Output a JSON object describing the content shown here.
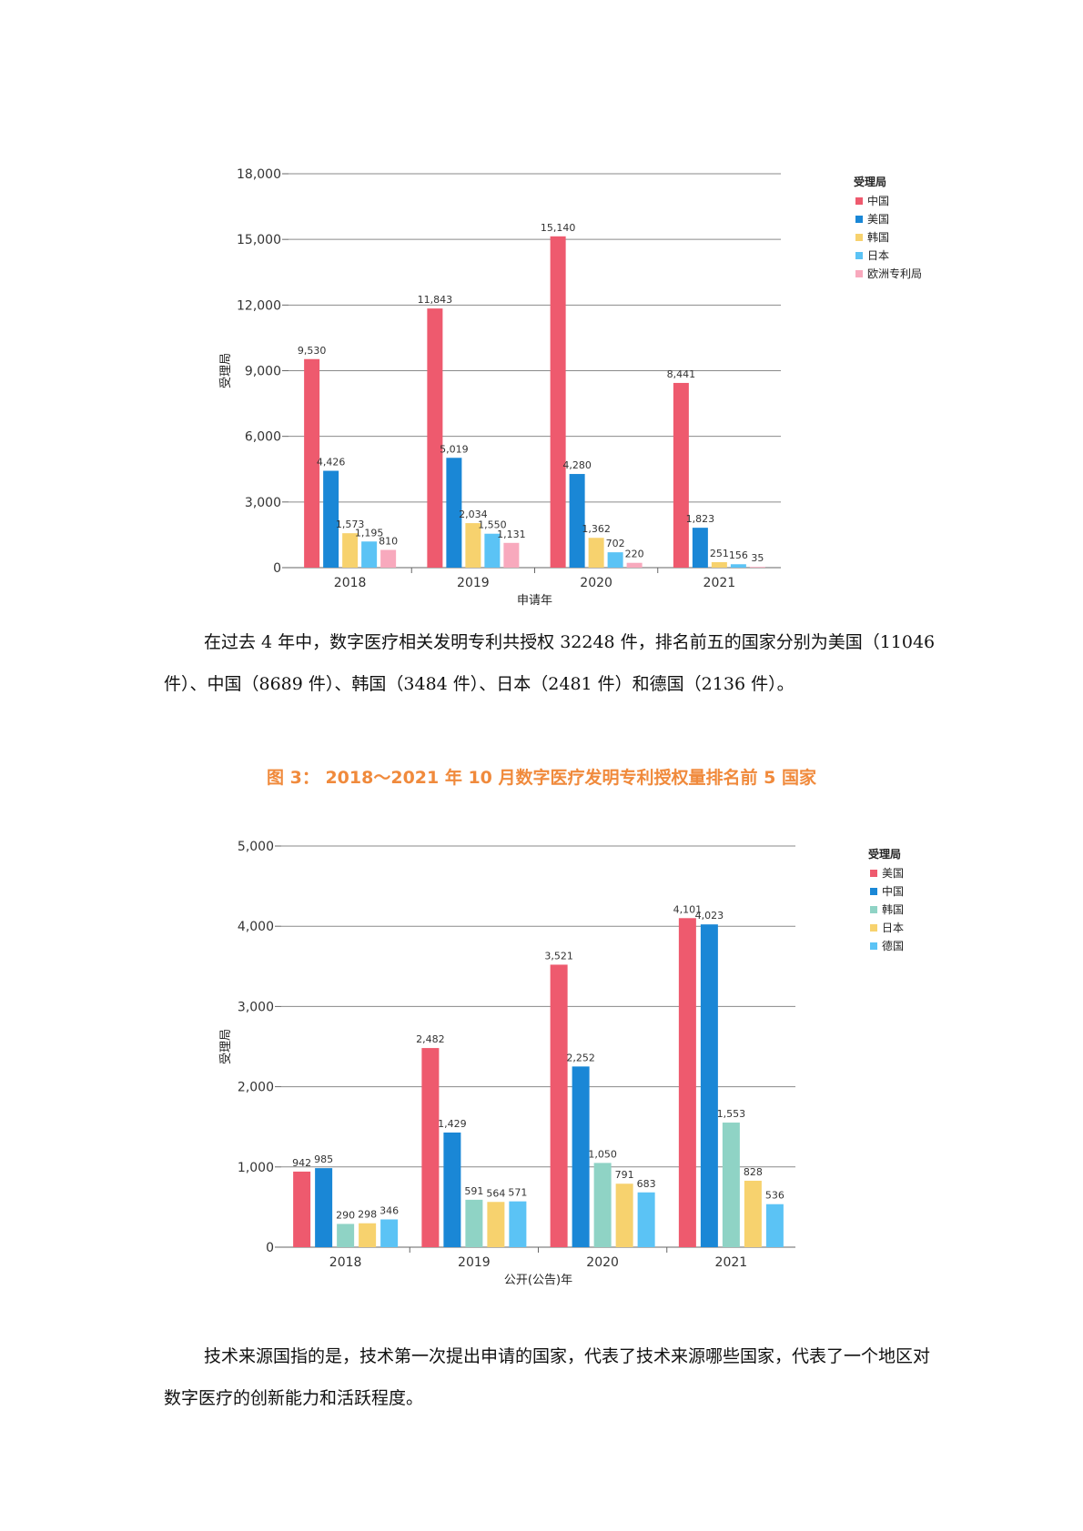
{
  "chart_data": [
    {
      "type": "bar",
      "title": "",
      "xlabel": "申请年",
      "ylabel": "受理局",
      "ylim": [
        0,
        18000
      ],
      "yticks": [
        "0",
        "3,000",
        "6,000",
        "9,000",
        "12,000",
        "15,000",
        "18,000"
      ],
      "grid": true,
      "legend_title": "受理局",
      "legend_position": "right",
      "categories": [
        "2018",
        "2019",
        "2020",
        "2021"
      ],
      "series": [
        {
          "name": "中国",
          "color": "#ee5a6e",
          "values": [
            9530,
            11843,
            15140,
            8441
          ],
          "labels": [
            "9,530",
            "11,843",
            "15,140",
            "8,441"
          ]
        },
        {
          "name": "美国",
          "color": "#1a87d6",
          "values": [
            4426,
            5019,
            4280,
            1823
          ],
          "labels": [
            "4,426",
            "5,019",
            "4,280",
            "1,823"
          ]
        },
        {
          "name": "韩国",
          "color": "#f7d26e",
          "values": [
            1573,
            2034,
            1362,
            251
          ],
          "labels": [
            "1,573",
            "2,034",
            "1,362",
            "251"
          ]
        },
        {
          "name": "日本",
          "color": "#5bc3f5",
          "values": [
            1195,
            1550,
            702,
            156
          ],
          "labels": [
            "1,195",
            "1,550",
            "702",
            "156"
          ]
        },
        {
          "name": "欧洲专利局",
          "color": "#f8a9bd",
          "values": [
            810,
            1131,
            220,
            35
          ],
          "labels": [
            "810",
            "1,131",
            "220",
            "35"
          ]
        }
      ]
    },
    {
      "type": "bar",
      "title": "图 3： 2018～2021 年 10 月数字医疗发明专利授权量排名前 5 国家",
      "xlabel": "公开(公告)年",
      "ylabel": "受理局",
      "ylim": [
        0,
        5000
      ],
      "yticks": [
        "0",
        "1,000",
        "2,000",
        "3,000",
        "4,000",
        "5,000"
      ],
      "grid": true,
      "legend_title": "受理局",
      "legend_position": "right",
      "categories": [
        "2018",
        "2019",
        "2020",
        "2021"
      ],
      "series": [
        {
          "name": "美国",
          "color": "#ee5a6e",
          "values": [
            942,
            2482,
            3521,
            4101
          ],
          "labels": [
            "942",
            "2,482",
            "3,521",
            "4,101"
          ]
        },
        {
          "name": "中国",
          "color": "#1a87d6",
          "values": [
            985,
            1429,
            2252,
            4023
          ],
          "labels": [
            "985",
            "1,429",
            "2,252",
            "4,023"
          ]
        },
        {
          "name": "韩国",
          "color": "#8fd3c5",
          "values": [
            290,
            591,
            1050,
            1553
          ],
          "labels": [
            "290",
            "591",
            "1,050",
            "1,553"
          ]
        },
        {
          "name": "日本",
          "color": "#f7d26e",
          "values": [
            298,
            564,
            791,
            828
          ],
          "labels": [
            "298",
            "564",
            "791",
            "828"
          ]
        },
        {
          "name": "德国",
          "color": "#5bc3f5",
          "values": [
            346,
            571,
            683,
            536
          ],
          "labels": [
            "346",
            "571",
            "683",
            "536"
          ]
        }
      ]
    }
  ],
  "text": {
    "para1": "在过去 4 年中，数字医疗相关发明专利共授权 32248 件，排名前五的国家分别为美国（11046 件）、中国（8689 件）、韩国（3484 件）、日本（2481 件）和德国（2136 件）。",
    "para2": "技术来源国指的是，技术第一次提出申请的国家，代表了技术来源哪些国家，代表了一个地区对数字医疗的创新能力和活跃程度。"
  }
}
